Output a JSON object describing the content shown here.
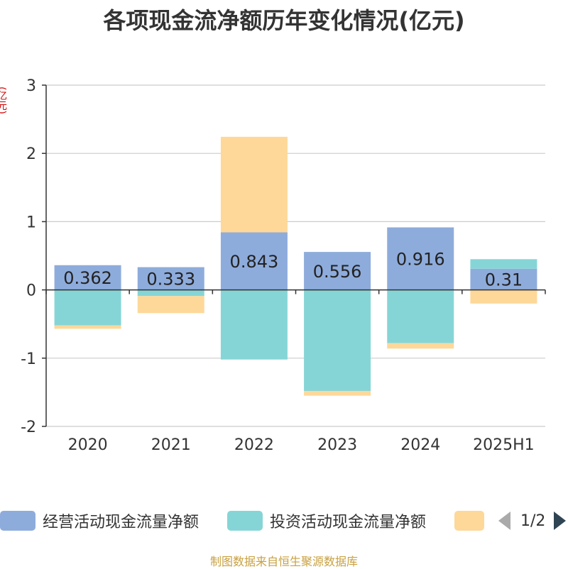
{
  "title": "各项现金流净额历年变化情况(亿元)",
  "y_unit": "(亿元)",
  "source": "制图数据来自恒生聚源数据库",
  "legend": {
    "items": [
      {
        "label": "经营活动现金流量净额",
        "color": "#8eacdb"
      },
      {
        "label": "投资活动现金流量净额",
        "color": "#86d5d6"
      },
      {
        "label": "",
        "color": "#fdd899"
      }
    ],
    "page": "1/2"
  },
  "chart_data": {
    "type": "bar",
    "stacked": true,
    "categories": [
      "2020",
      "2021",
      "2022",
      "2023",
      "2024",
      "2025H1"
    ],
    "ylim": [
      -2,
      3
    ],
    "yticks": [
      -2,
      -1,
      0,
      1,
      2,
      3
    ],
    "grid": true,
    "series": [
      {
        "name": "经营活动现金流量净额",
        "color": "#8eacdb",
        "values": [
          0.362,
          0.333,
          0.843,
          0.556,
          0.916,
          0.31
        ],
        "labels": [
          "0.362",
          "0.333",
          "0.843",
          "0.556",
          "0.916",
          "0.31"
        ]
      },
      {
        "name": "投资活动现金流量净额",
        "color": "#86d5d6",
        "values": [
          -0.52,
          -0.09,
          -1.02,
          -1.48,
          -0.78,
          0.14
        ]
      },
      {
        "color": "#fdd899",
        "values": [
          -0.05,
          -0.25,
          1.4,
          -0.07,
          -0.08,
          -0.2
        ]
      }
    ]
  }
}
